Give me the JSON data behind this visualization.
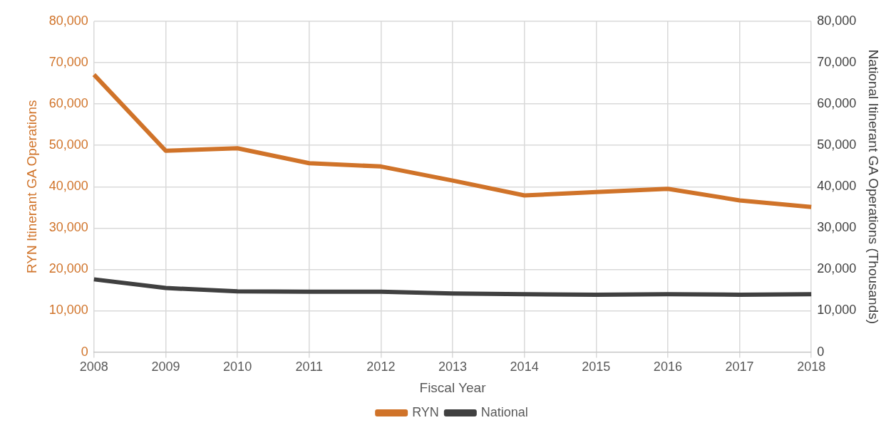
{
  "chart_data": {
    "type": "line",
    "xlabel": "Fiscal Year",
    "ylabel": "RYN Itinerant GA Operations",
    "y2label": "National Itinerant GA Operations (Thousands)",
    "categories": [
      "2008",
      "2009",
      "2010",
      "2011",
      "2012",
      "2013",
      "2014",
      "2015",
      "2016",
      "2017",
      "2018"
    ],
    "series": [
      {
        "name": "RYN",
        "color": "#d07329",
        "values": [
          67100,
          48700,
          49300,
          45700,
          44900,
          41500,
          37900,
          38700,
          39500,
          36700,
          35100
        ]
      },
      {
        "name": "National",
        "color": "#404040",
        "axis": "y2",
        "values": [
          17600,
          15500,
          14700,
          14600,
          14600,
          14200,
          14000,
          13900,
          14000,
          13900,
          14000
        ]
      }
    ],
    "ylim": [
      0,
      80000
    ],
    "yticks": [
      0,
      {
        "value": 10000,
        "label": "10,000"
      },
      {
        "value": 20000,
        "label": "20,000"
      },
      {
        "value": 30000,
        "label": "30,000"
      },
      {
        "value": 40000,
        "label": "40,000"
      },
      {
        "value": 50000,
        "label": "50,000"
      },
      {
        "value": 60000,
        "label": "60,000"
      },
      {
        "value": 70000,
        "label": "70,000"
      },
      {
        "value": 80000,
        "label": "80,000"
      }
    ],
    "y2lim": [
      0,
      80000
    ],
    "y2ticks": [
      0,
      {
        "value": 10000,
        "label": "10,000"
      },
      {
        "value": 20000,
        "label": "20,000"
      },
      {
        "value": 30000,
        "label": "30,000"
      },
      {
        "value": 40000,
        "label": "40,000"
      },
      {
        "value": 50000,
        "label": "50,000"
      },
      {
        "value": 60000,
        "label": "60,000"
      },
      {
        "value": 70000,
        "label": "70,000"
      },
      {
        "value": 80000,
        "label": "80,000"
      }
    ],
    "grid": true,
    "legend": "bottom",
    "marker": "none",
    "line_style": "solid"
  }
}
